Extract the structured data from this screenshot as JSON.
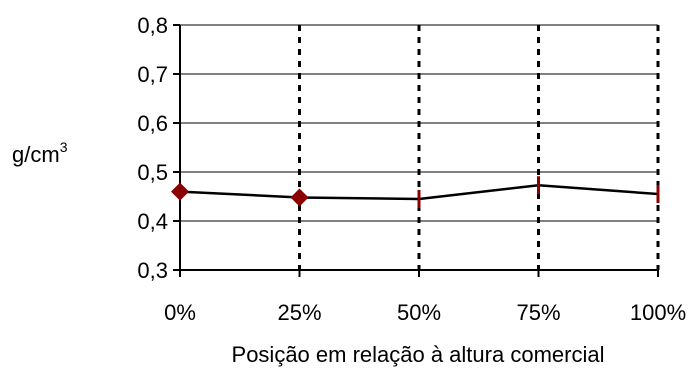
{
  "chart_data": {
    "type": "line",
    "title": "",
    "xlabel": "Posição em relação à altura comercial",
    "ylabel": "g/cm",
    "ylabel_superscript": "3",
    "categories": [
      "0%",
      "25%",
      "50%",
      "75%",
      "100%"
    ],
    "series": [
      {
        "values": [
          0.46,
          0.448,
          0.445,
          0.473,
          0.455
        ],
        "color": "#8b0000",
        "marker": "diamond"
      }
    ],
    "yticks": [
      "0,3",
      "0,4",
      "0,5",
      "0,6",
      "0,7",
      "0,8"
    ],
    "ylim": [
      0.3,
      0.8
    ],
    "grid": {
      "horizontal": "solid",
      "vertical": "dotted"
    },
    "line_color": "#000000"
  }
}
